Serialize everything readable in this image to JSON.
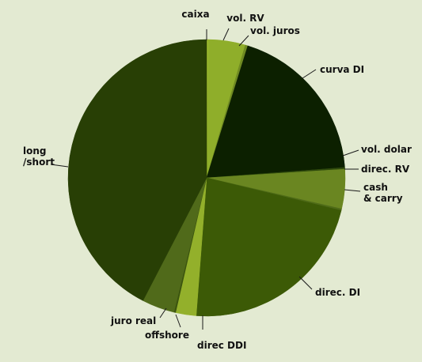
{
  "chart_data": {
    "type": "pie",
    "title": "",
    "start_angle_deg": 0,
    "direction": "clockwise",
    "slices": [
      {
        "label": "caixa",
        "value": 0.2,
        "color": "#9dbb2e"
      },
      {
        "label": "vol. RV",
        "value": 4.3,
        "color": "#8fae2a"
      },
      {
        "label": "vol. juros",
        "value": 0.3,
        "color": "#6f8a22"
      },
      {
        "label": "curva DI",
        "value": 19.0,
        "color": "#0c2000"
      },
      {
        "label": "vol. dolar",
        "value": 0.2,
        "color": "#2f4a0c"
      },
      {
        "label": "direc. RV",
        "value": 4.6,
        "color": "#6a8621"
      },
      {
        "label": "cash & carry",
        "value": 0.2,
        "color": "#4f6b18"
      },
      {
        "label": "direc. DI",
        "value": 22.4,
        "color": "#3c5a06"
      },
      {
        "label": "direc DDI",
        "value": 2.4,
        "color": "#93b02b"
      },
      {
        "label": "offshore",
        "value": 0.2,
        "color": "#3b540e"
      },
      {
        "label": "juro real",
        "value": 3.8,
        "color": "#506a1a"
      },
      {
        "label": "long /short",
        "value": 42.4,
        "color": "#283f05"
      }
    ],
    "labels": [
      {
        "lines": [
          "caixa"
        ]
      },
      {
        "lines": [
          "vol. RV"
        ]
      },
      {
        "lines": [
          "vol. juros"
        ]
      },
      {
        "lines": [
          "curva DI"
        ]
      },
      {
        "lines": [
          "vol. dolar"
        ]
      },
      {
        "lines": [
          "direc. RV"
        ]
      },
      {
        "lines": [
          "cash",
          "& carry"
        ]
      },
      {
        "lines": [
          "direc. DI"
        ]
      },
      {
        "lines": [
          "direc DDI"
        ]
      },
      {
        "lines": [
          "offshore"
        ]
      },
      {
        "lines": [
          "juro real"
        ]
      },
      {
        "lines": [
          "long",
          "/short"
        ]
      }
    ],
    "legend": "none",
    "background": "#e3ead2"
  }
}
